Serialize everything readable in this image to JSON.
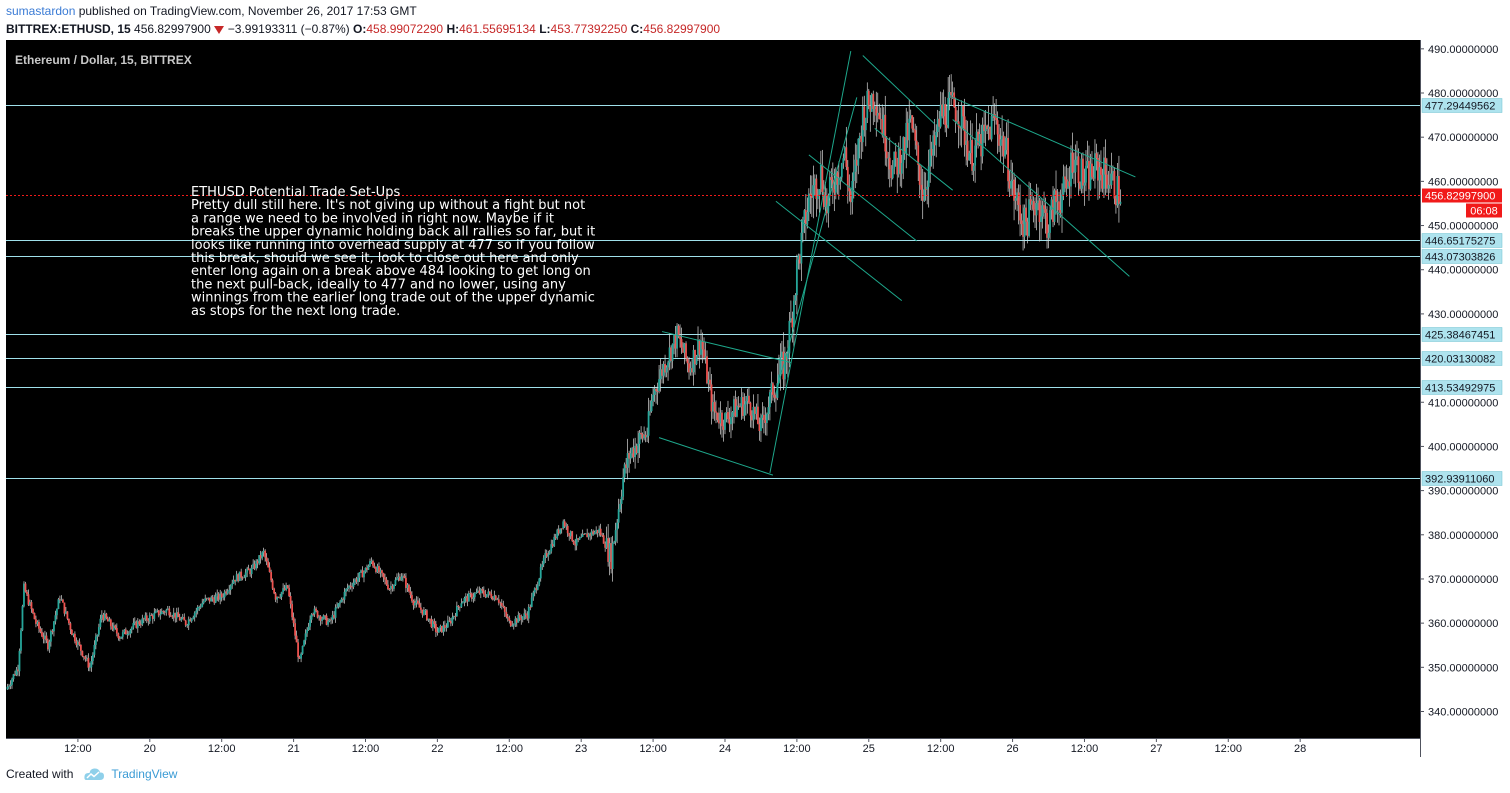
{
  "header": {
    "author": "sumastardon",
    "published_text": " published on TradingView.com, November 26, 2017 17:53 GMT",
    "symbol": "BITTREX:ETHUSD, 15",
    "last": "456.82997900",
    "change": "−3.99193311 (−0.87%)",
    "o_label": "O:",
    "o": "458.99072290",
    "h_label": "H:",
    "h": "461.55695134",
    "l_label": "L:",
    "l": "453.77392250",
    "c_label": "C:",
    "c": "456.82997900"
  },
  "footer": {
    "created_with": "Created with",
    "brand": "TradingView",
    "brand_icon": "tradingview-cloud-icon"
  },
  "colors": {
    "background": "#000000",
    "up": "#26a69a",
    "down": "#ef5350",
    "hline": "#9fe0ea",
    "trend": "#1ea88c",
    "last_price": "#f11a1a"
  },
  "chart_data": {
    "type": "candlestick",
    "title": "Ethereum / Dollar, 15, BITTREX",
    "ylim": [
      334,
      492
    ],
    "yticks": [
      "340.00000000",
      "350.00000000",
      "360.00000000",
      "370.00000000",
      "380.00000000",
      "390.00000000",
      "400.00000000",
      "410.00000000",
      "430.00000000",
      "440.00000000",
      "450.00000000",
      "460.00000000",
      "470.00000000",
      "480.00000000",
      "490.00000000"
    ],
    "ytick_values": [
      340,
      350,
      360,
      370,
      380,
      390,
      400,
      410,
      430,
      440,
      450,
      460,
      470,
      480,
      490
    ],
    "x_axis": {
      "range_hours": [
        0,
        236
      ],
      "ticks": [
        {
          "t": 12,
          "label": "12:00"
        },
        {
          "t": 24,
          "label": "20"
        },
        {
          "t": 36,
          "label": "12:00"
        },
        {
          "t": 48,
          "label": "21"
        },
        {
          "t": 60,
          "label": "12:00"
        },
        {
          "t": 72,
          "label": "22"
        },
        {
          "t": 84,
          "label": "12:00"
        },
        {
          "t": 96,
          "label": "23"
        },
        {
          "t": 108,
          "label": "12:00"
        },
        {
          "t": 120,
          "label": "24"
        },
        {
          "t": 132,
          "label": "12:00"
        },
        {
          "t": 144,
          "label": "25"
        },
        {
          "t": 156,
          "label": "12:00"
        },
        {
          "t": 168,
          "label": "26"
        },
        {
          "t": 180,
          "label": "12:00"
        },
        {
          "t": 192,
          "label": "27"
        },
        {
          "t": 204,
          "label": "12:00"
        },
        {
          "t": 216,
          "label": "28"
        }
      ]
    },
    "price_path": [
      [
        0,
        345
      ],
      [
        2,
        350
      ],
      [
        3,
        368
      ],
      [
        5,
        360
      ],
      [
        7,
        355
      ],
      [
        9,
        366
      ],
      [
        11,
        358
      ],
      [
        14,
        350
      ],
      [
        16,
        362
      ],
      [
        19,
        357
      ],
      [
        22,
        360
      ],
      [
        25,
        362
      ],
      [
        27,
        363
      ],
      [
        30,
        360
      ],
      [
        33,
        365
      ],
      [
        36,
        366
      ],
      [
        38,
        370
      ],
      [
        41,
        372
      ],
      [
        43,
        376
      ],
      [
        45,
        366
      ],
      [
        47,
        368
      ],
      [
        49,
        351
      ],
      [
        51,
        363
      ],
      [
        54,
        360
      ],
      [
        57,
        368
      ],
      [
        60,
        372
      ],
      [
        61,
        374
      ],
      [
        64,
        368
      ],
      [
        66,
        371
      ],
      [
        68,
        365
      ],
      [
        70,
        362
      ],
      [
        72,
        358
      ],
      [
        74,
        360
      ],
      [
        76,
        365
      ],
      [
        79,
        367
      ],
      [
        82,
        366
      ],
      [
        84,
        360
      ],
      [
        87,
        362
      ],
      [
        90,
        375
      ],
      [
        93,
        383
      ],
      [
        95,
        378
      ],
      [
        97,
        380
      ],
      [
        99,
        381
      ],
      [
        101,
        375
      ],
      [
        103,
        393
      ],
      [
        104,
        398
      ],
      [
        106,
        402
      ],
      [
        107,
        403
      ],
      [
        108,
        412
      ],
      [
        110,
        419
      ],
      [
        112,
        425
      ],
      [
        114,
        418
      ],
      [
        116,
        424
      ],
      [
        118,
        408
      ],
      [
        120,
        406
      ],
      [
        122,
        409
      ],
      [
        124,
        410
      ],
      [
        126,
        404
      ],
      [
        128,
        413
      ],
      [
        130,
        419
      ],
      [
        131,
        428
      ],
      [
        132,
        440
      ],
      [
        134,
        456
      ],
      [
        136,
        462
      ],
      [
        137,
        454
      ],
      [
        138,
        460
      ],
      [
        140,
        466
      ],
      [
        141,
        455
      ],
      [
        143,
        475
      ],
      [
        145,
        480
      ],
      [
        147,
        469
      ],
      [
        148,
        462
      ],
      [
        150,
        468
      ],
      [
        151,
        473
      ],
      [
        153,
        458
      ],
      [
        155,
        468
      ],
      [
        156,
        475
      ],
      [
        158,
        477
      ],
      [
        159,
        476
      ],
      [
        161,
        466
      ],
      [
        163,
        469
      ],
      [
        165,
        474
      ],
      [
        167,
        466
      ],
      [
        168,
        458
      ],
      [
        170,
        450
      ],
      [
        172,
        456
      ],
      [
        174,
        450
      ],
      [
        175,
        455
      ],
      [
        177,
        458
      ],
      [
        178,
        466
      ],
      [
        180,
        460
      ],
      [
        182,
        463
      ],
      [
        184,
        461
      ],
      [
        186,
        457
      ]
    ],
    "last_price": 456.829979,
    "last_price_label": "456.82997900",
    "countdown": "06:08",
    "horizontal_levels": [
      {
        "value": 477.29449562,
        "label": "477.29449562"
      },
      {
        "value": 446.65175275,
        "label": "446.65175275"
      },
      {
        "value": 443.07303826,
        "label": "443.07303826"
      },
      {
        "value": 425.38467451,
        "label": "425.38467451"
      },
      {
        "value": 420.03130082,
        "label": "420.03130082"
      },
      {
        "value": 413.53492975,
        "label": "413.53492975"
      },
      {
        "value": 392.9391106,
        "label": "392.93911060"
      }
    ],
    "trend_lines": [
      {
        "t1": 109.5,
        "p1": 426.0,
        "t2": 131.0,
        "p2": 419.0
      },
      {
        "t1": 109.0,
        "p1": 402.0,
        "t2": 128.0,
        "p2": 393.5
      },
      {
        "t1": 127.5,
        "p1": 394.0,
        "t2": 141.0,
        "p2": 489.5
      },
      {
        "t1": 128.5,
        "p1": 412.0,
        "t2": 142.0,
        "p2": 479.0
      },
      {
        "t1": 134.0,
        "p1": 466.0,
        "t2": 152.0,
        "p2": 446.5
      },
      {
        "t1": 128.5,
        "p1": 455.5,
        "t2": 149.5,
        "p2": 433.0
      },
      {
        "t1": 143.0,
        "p1": 488.5,
        "t2": 155.0,
        "p2": 473.0
      },
      {
        "t1": 145.0,
        "p1": 472.0,
        "t2": 158.0,
        "p2": 458.0
      },
      {
        "t1": 158.0,
        "p1": 479.0,
        "t2": 188.5,
        "p2": 461.0
      },
      {
        "t1": 158.0,
        "p1": 474.0,
        "t2": 187.5,
        "p2": 438.5
      }
    ],
    "annotation": {
      "title": "ETHUSD  Potential Trade Set-Ups",
      "lines": [
        "Pretty dull still here. It's not giving up without a fight but not",
        "a range we need to be involved in right now. Maybe if it",
        "breaks the upper dynamic holding back all rallies so far, but it",
        "looks like running into overhead supply at 477 so if you follow",
        "this break, should we see it, look to close out here and only",
        "enter long again on a break  above 484 looking to get long on",
        "the next pull-back, ideally to 477 and no lower, using any",
        "winnings from the earlier long trade out of the upper dynamic",
        "as stops for the next long trade."
      ]
    }
  }
}
